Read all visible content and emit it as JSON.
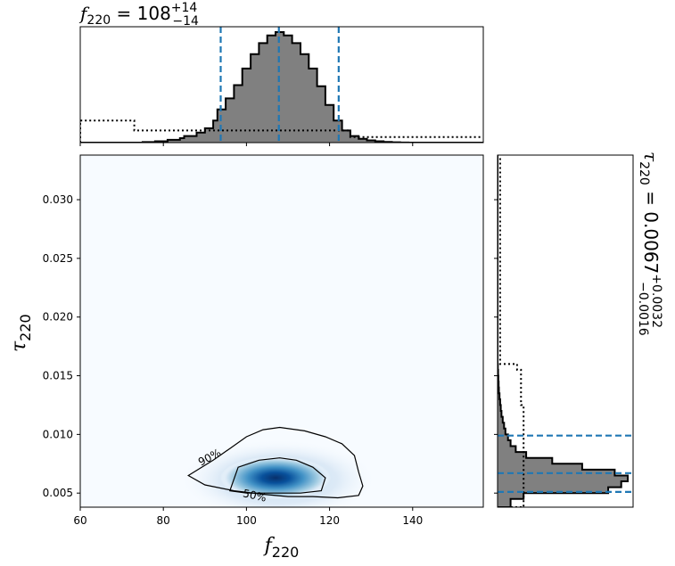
{
  "chart_data": [
    {
      "type": "histogram",
      "panel": "top-marginal",
      "variable": "f_220",
      "title": {
        "symbol": "f",
        "sub": "220",
        "eq": " = 108",
        "sup": "+14",
        "lo": "−14"
      },
      "xlim": [
        60,
        157
      ],
      "bins_x": [
        60,
        66,
        72,
        73,
        75,
        78,
        81,
        84,
        85,
        88,
        90,
        92,
        93,
        95,
        97,
        99,
        101,
        103,
        105,
        107,
        109,
        111,
        113,
        115,
        117,
        119,
        121,
        123,
        125,
        127,
        129,
        131,
        133,
        135,
        137,
        139,
        141,
        143,
        157
      ],
      "posterior_density": [
        0,
        0,
        0,
        0,
        0.005,
        0.012,
        0.025,
        0.04,
        0.06,
        0.09,
        0.13,
        0.2,
        0.3,
        0.4,
        0.52,
        0.67,
        0.8,
        0.9,
        0.97,
        1.0,
        0.97,
        0.9,
        0.8,
        0.67,
        0.51,
        0.34,
        0.2,
        0.11,
        0.06,
        0.035,
        0.02,
        0.012,
        0.006,
        0.003,
        0.001,
        0,
        0,
        0
      ],
      "prior_density": [
        0.2,
        0.2,
        0.2,
        0.11,
        0.11,
        0.11,
        0.11,
        0.11,
        0.11,
        0.11,
        0.11,
        0.11,
        0.11,
        0.11,
        0.11,
        0.11,
        0.11,
        0.11,
        0.11,
        0.11,
        0.11,
        0.11,
        0.11,
        0.11,
        0.11,
        0.11,
        0.11,
        0.11,
        0.05,
        0.05,
        0.05,
        0.05,
        0.05,
        0.05,
        0.05,
        0.05,
        0.05,
        0.05
      ],
      "quantile_lines": [
        93.8,
        107.8,
        122.2
      ],
      "line_color": "#1f77b4",
      "fill_color": "#808080"
    },
    {
      "type": "heatmap",
      "panel": "joint",
      "xlabel": {
        "symbol": "f",
        "sub": "220"
      },
      "ylabel": {
        "symbol": "τ",
        "sub": "220"
      },
      "xlim": [
        60,
        157
      ],
      "ylim": [
        0.0038,
        0.0338
      ],
      "xticks": [
        60,
        80,
        100,
        120,
        140
      ],
      "yticks": [
        0.005,
        0.01,
        0.015,
        0.02,
        0.025,
        0.03
      ],
      "ytick_labels": [
        "0.005",
        "0.010",
        "0.015",
        "0.020",
        "0.025",
        "0.030"
      ],
      "colormap": "Blues",
      "peak": {
        "x": 107,
        "y": 0.0063
      },
      "contours": [
        {
          "label": "50%",
          "level": 0.5,
          "points": [
            [
              96,
              0.0052
            ],
            [
              98,
              0.0072
            ],
            [
              103,
              0.0078
            ],
            [
              108,
              0.008
            ],
            [
              112,
              0.0078
            ],
            [
              116,
              0.0072
            ],
            [
              119,
              0.0063
            ],
            [
              118,
              0.0052
            ],
            [
              113,
              0.005
            ],
            [
              106,
              0.005
            ],
            [
              100,
              0.005
            ],
            [
              96,
              0.0052
            ]
          ]
        },
        {
          "label": "90%",
          "level": 0.9,
          "points": [
            [
              86,
              0.0065
            ],
            [
              92,
              0.0078
            ],
            [
              96,
              0.0088
            ],
            [
              100,
              0.0098
            ],
            [
              104,
              0.0104
            ],
            [
              108,
              0.0106
            ],
            [
              114,
              0.0103
            ],
            [
              119,
              0.0098
            ],
            [
              123,
              0.0092
            ],
            [
              126,
              0.0082
            ],
            [
              127,
              0.0068
            ],
            [
              128,
              0.0056
            ],
            [
              127,
              0.0048
            ],
            [
              122,
              0.0046
            ],
            [
              116,
              0.0047
            ],
            [
              110,
              0.0047
            ],
            [
              104,
              0.0049
            ],
            [
              97,
              0.0052
            ],
            [
              90,
              0.0057
            ],
            [
              86,
              0.0065
            ]
          ]
        }
      ],
      "contour_labels": [
        "90%",
        "50%"
      ]
    },
    {
      "type": "histogram",
      "panel": "right-marginal",
      "orientation": "horizontal",
      "variable": "tau_220",
      "title": {
        "symbol": "τ",
        "sub": "220",
        "eq": " = 0.0067",
        "sup": "+0.0032",
        "lo": "−0.0016"
      },
      "ylim": [
        0.0038,
        0.0338
      ],
      "bins_y": [
        0.0038,
        0.0045,
        0.005,
        0.0055,
        0.006,
        0.0065,
        0.007,
        0.0075,
        0.008,
        0.0085,
        0.009,
        0.0095,
        0.01,
        0.0105,
        0.011,
        0.0115,
        0.012,
        0.0125,
        0.013,
        0.0135,
        0.014,
        0.0145,
        0.015,
        0.0155,
        0.016,
        0.0338
      ],
      "posterior_density": [
        0.1,
        0.2,
        0.85,
        0.95,
        1.0,
        0.9,
        0.65,
        0.42,
        0.22,
        0.14,
        0.1,
        0.08,
        0.06,
        0.05,
        0.04,
        0.03,
        0.025,
        0.02,
        0.015,
        0.01,
        0.008,
        0.006,
        0.004,
        0.002,
        0
      ],
      "prior_density": [
        0.2,
        0.2,
        0.2,
        0.2,
        0.2,
        0.2,
        0.2,
        0.2,
        0.2,
        0.2,
        0.2,
        0.2,
        0.2,
        0.2,
        0.2,
        0.2,
        0.2,
        0.18,
        0.18,
        0.18,
        0.18,
        0.18,
        0.18,
        0.15,
        0.02
      ],
      "quantile_lines": [
        0.0051,
        0.0067,
        0.0099
      ],
      "line_color": "#1f77b4",
      "fill_color": "#808080"
    }
  ]
}
